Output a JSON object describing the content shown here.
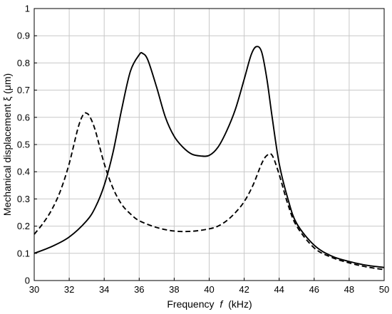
{
  "chart_data": {
    "type": "line",
    "title": "",
    "xlabel": "Frequency",
    "xlabel_symbol": "f",
    "xlabel_unit": "(kHz)",
    "ylabel": "Mechanical displacement ξ (μm)",
    "xlim": [
      30,
      50
    ],
    "ylim": [
      0,
      1
    ],
    "xticks": [
      "30",
      "32",
      "34",
      "36",
      "38",
      "40",
      "42",
      "44",
      "46",
      "48",
      "50"
    ],
    "yticks": [
      "0",
      "0.1",
      "0.2",
      "0.3",
      "0.4",
      "0.5",
      "0.6",
      "0.7",
      "0.8",
      "0.9",
      "1"
    ],
    "grid": true,
    "legend": "none",
    "series": [
      {
        "style": "solid",
        "color": "#000000",
        "x": [
          30,
          31,
          32,
          33,
          33.5,
          34,
          34.5,
          35,
          35.5,
          36,
          36.2,
          36.5,
          37,
          37.5,
          38,
          38.5,
          39,
          39.5,
          40,
          40.5,
          41,
          41.5,
          42,
          42.4,
          42.7,
          43,
          43.3,
          43.6,
          44,
          44.5,
          45,
          46,
          47,
          48,
          49,
          50
        ],
        "y": [
          0.1,
          0.125,
          0.16,
          0.22,
          0.27,
          0.35,
          0.47,
          0.63,
          0.77,
          0.83,
          0.835,
          0.81,
          0.71,
          0.6,
          0.53,
          0.49,
          0.465,
          0.458,
          0.46,
          0.49,
          0.55,
          0.63,
          0.74,
          0.83,
          0.86,
          0.84,
          0.74,
          0.6,
          0.43,
          0.3,
          0.21,
          0.13,
          0.09,
          0.07,
          0.056,
          0.048
        ]
      },
      {
        "style": "dashed",
        "color": "#000000",
        "x": [
          30,
          30.5,
          31,
          31.5,
          32,
          32.5,
          32.8,
          33,
          33.2,
          33.5,
          34,
          34.5,
          35,
          35.5,
          36,
          37,
          38,
          39,
          40,
          40.5,
          41,
          41.5,
          42,
          42.5,
          43,
          43.3,
          43.6,
          44,
          44.5,
          45,
          46,
          47,
          48,
          49,
          50
        ],
        "y": [
          0.17,
          0.21,
          0.26,
          0.33,
          0.43,
          0.56,
          0.61,
          0.615,
          0.6,
          0.55,
          0.43,
          0.34,
          0.28,
          0.245,
          0.22,
          0.195,
          0.182,
          0.181,
          0.19,
          0.2,
          0.22,
          0.25,
          0.29,
          0.35,
          0.43,
          0.46,
          0.46,
          0.39,
          0.28,
          0.2,
          0.12,
          0.085,
          0.065,
          0.05,
          0.04
        ]
      }
    ]
  }
}
